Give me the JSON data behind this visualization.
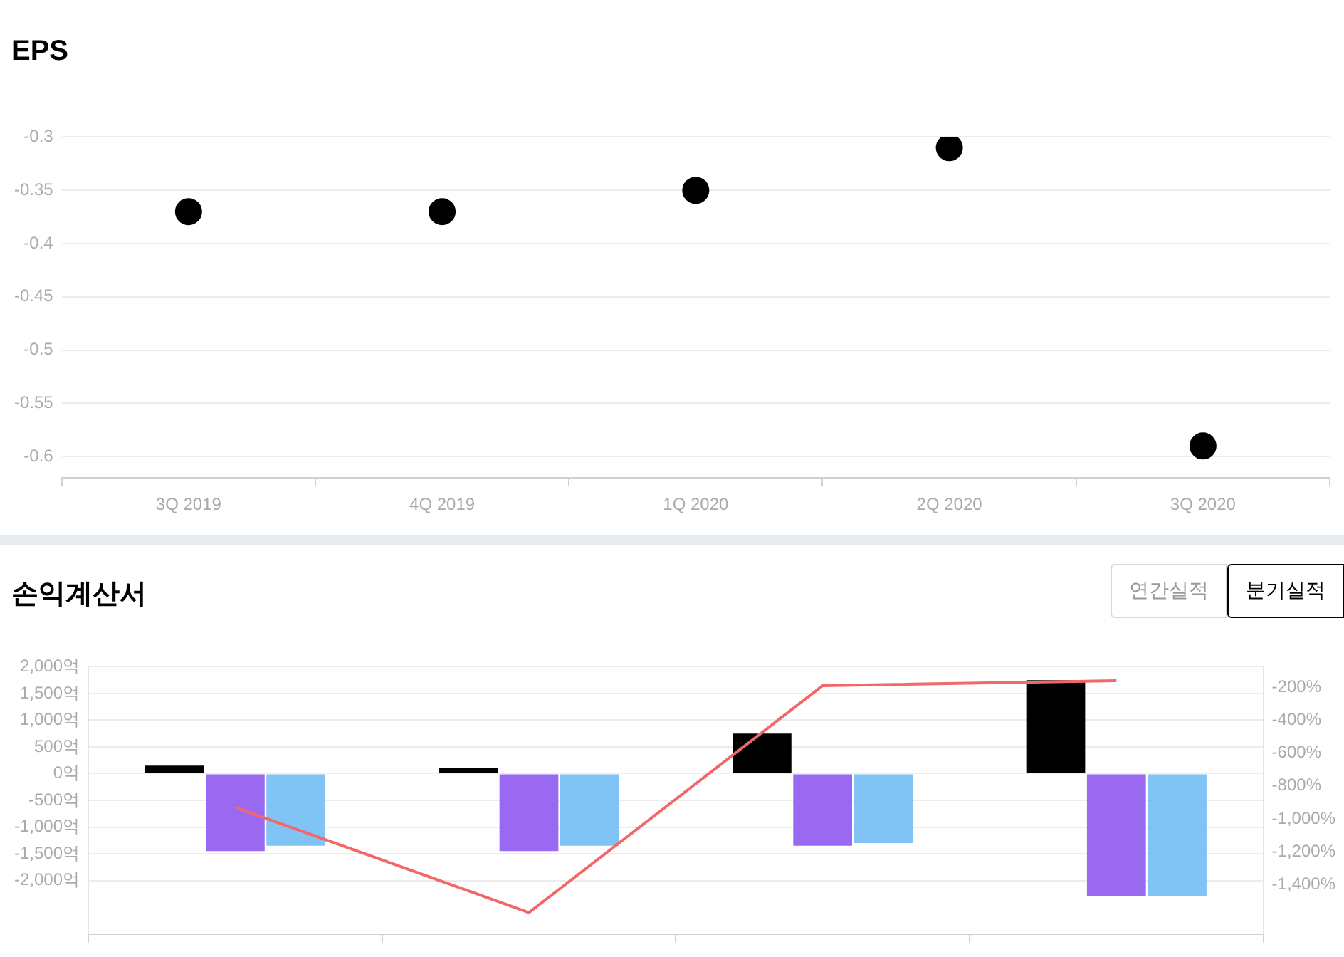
{
  "chart_data": [
    {
      "type": "scatter",
      "title": "EPS",
      "categories": [
        "3Q 2019",
        "4Q 2019",
        "1Q 2020",
        "2Q 2020",
        "3Q 2020"
      ],
      "values": [
        -0.37,
        -0.37,
        -0.35,
        -0.31,
        -0.59
      ],
      "color": "#000000",
      "marker": "circle",
      "ylim": [
        -0.62,
        -0.3
      ],
      "yticks": [
        -0.3,
        -0.35,
        -0.4,
        -0.45,
        -0.5,
        -0.55,
        -0.6
      ],
      "grid": "y"
    },
    {
      "type": "bar",
      "title": "손익계산서",
      "annotations": [
        "연간실적",
        "분기실적"
      ],
      "categories": [
        null,
        null,
        null,
        null
      ],
      "series": [
        {
          "color": "#000000",
          "values": [
            150,
            100,
            750,
            1750
          ]
        },
        {
          "color": "#9969f2",
          "values": [
            -1450,
            -1450,
            -1350,
            -2300
          ]
        },
        {
          "color": "#80c3f5",
          "values": [
            -1350,
            -1350,
            -1300,
            -2300
          ]
        },
        {
          "type": "line",
          "axis": "y2",
          "marker": "none",
          "color": "#f26868",
          "values": [
            -930,
            -1570,
            -190,
            -160
          ]
        }
      ],
      "ylim": [
        -3000,
        2000
      ],
      "yticks": [
        {
          "value": 2000,
          "label": "2,000억"
        },
        {
          "value": 1500,
          "label": "1,500억"
        },
        {
          "value": 1000,
          "label": "1,000억"
        },
        {
          "value": 500,
          "label": "500억"
        },
        {
          "value": 0,
          "label": "0억"
        },
        {
          "value": -500,
          "label": "-500억"
        },
        {
          "value": -1000,
          "label": "-1,000억"
        },
        {
          "value": -1500,
          "label": "-1,500억"
        },
        {
          "value": -2000,
          "label": "-2,000억"
        }
      ],
      "y2lim": [
        -1700,
        -75
      ],
      "y2ticks": [
        {
          "value": -200,
          "label": "-200%"
        },
        {
          "value": -400,
          "label": "-400%"
        },
        {
          "value": -600,
          "label": "-600%"
        },
        {
          "value": -800,
          "label": "-800%"
        },
        {
          "value": -1000,
          "label": "-1,000%"
        },
        {
          "value": -1200,
          "label": "-1,200%"
        },
        {
          "value": -1400,
          "label": "-1,400%"
        }
      ],
      "grid": "y"
    }
  ]
}
